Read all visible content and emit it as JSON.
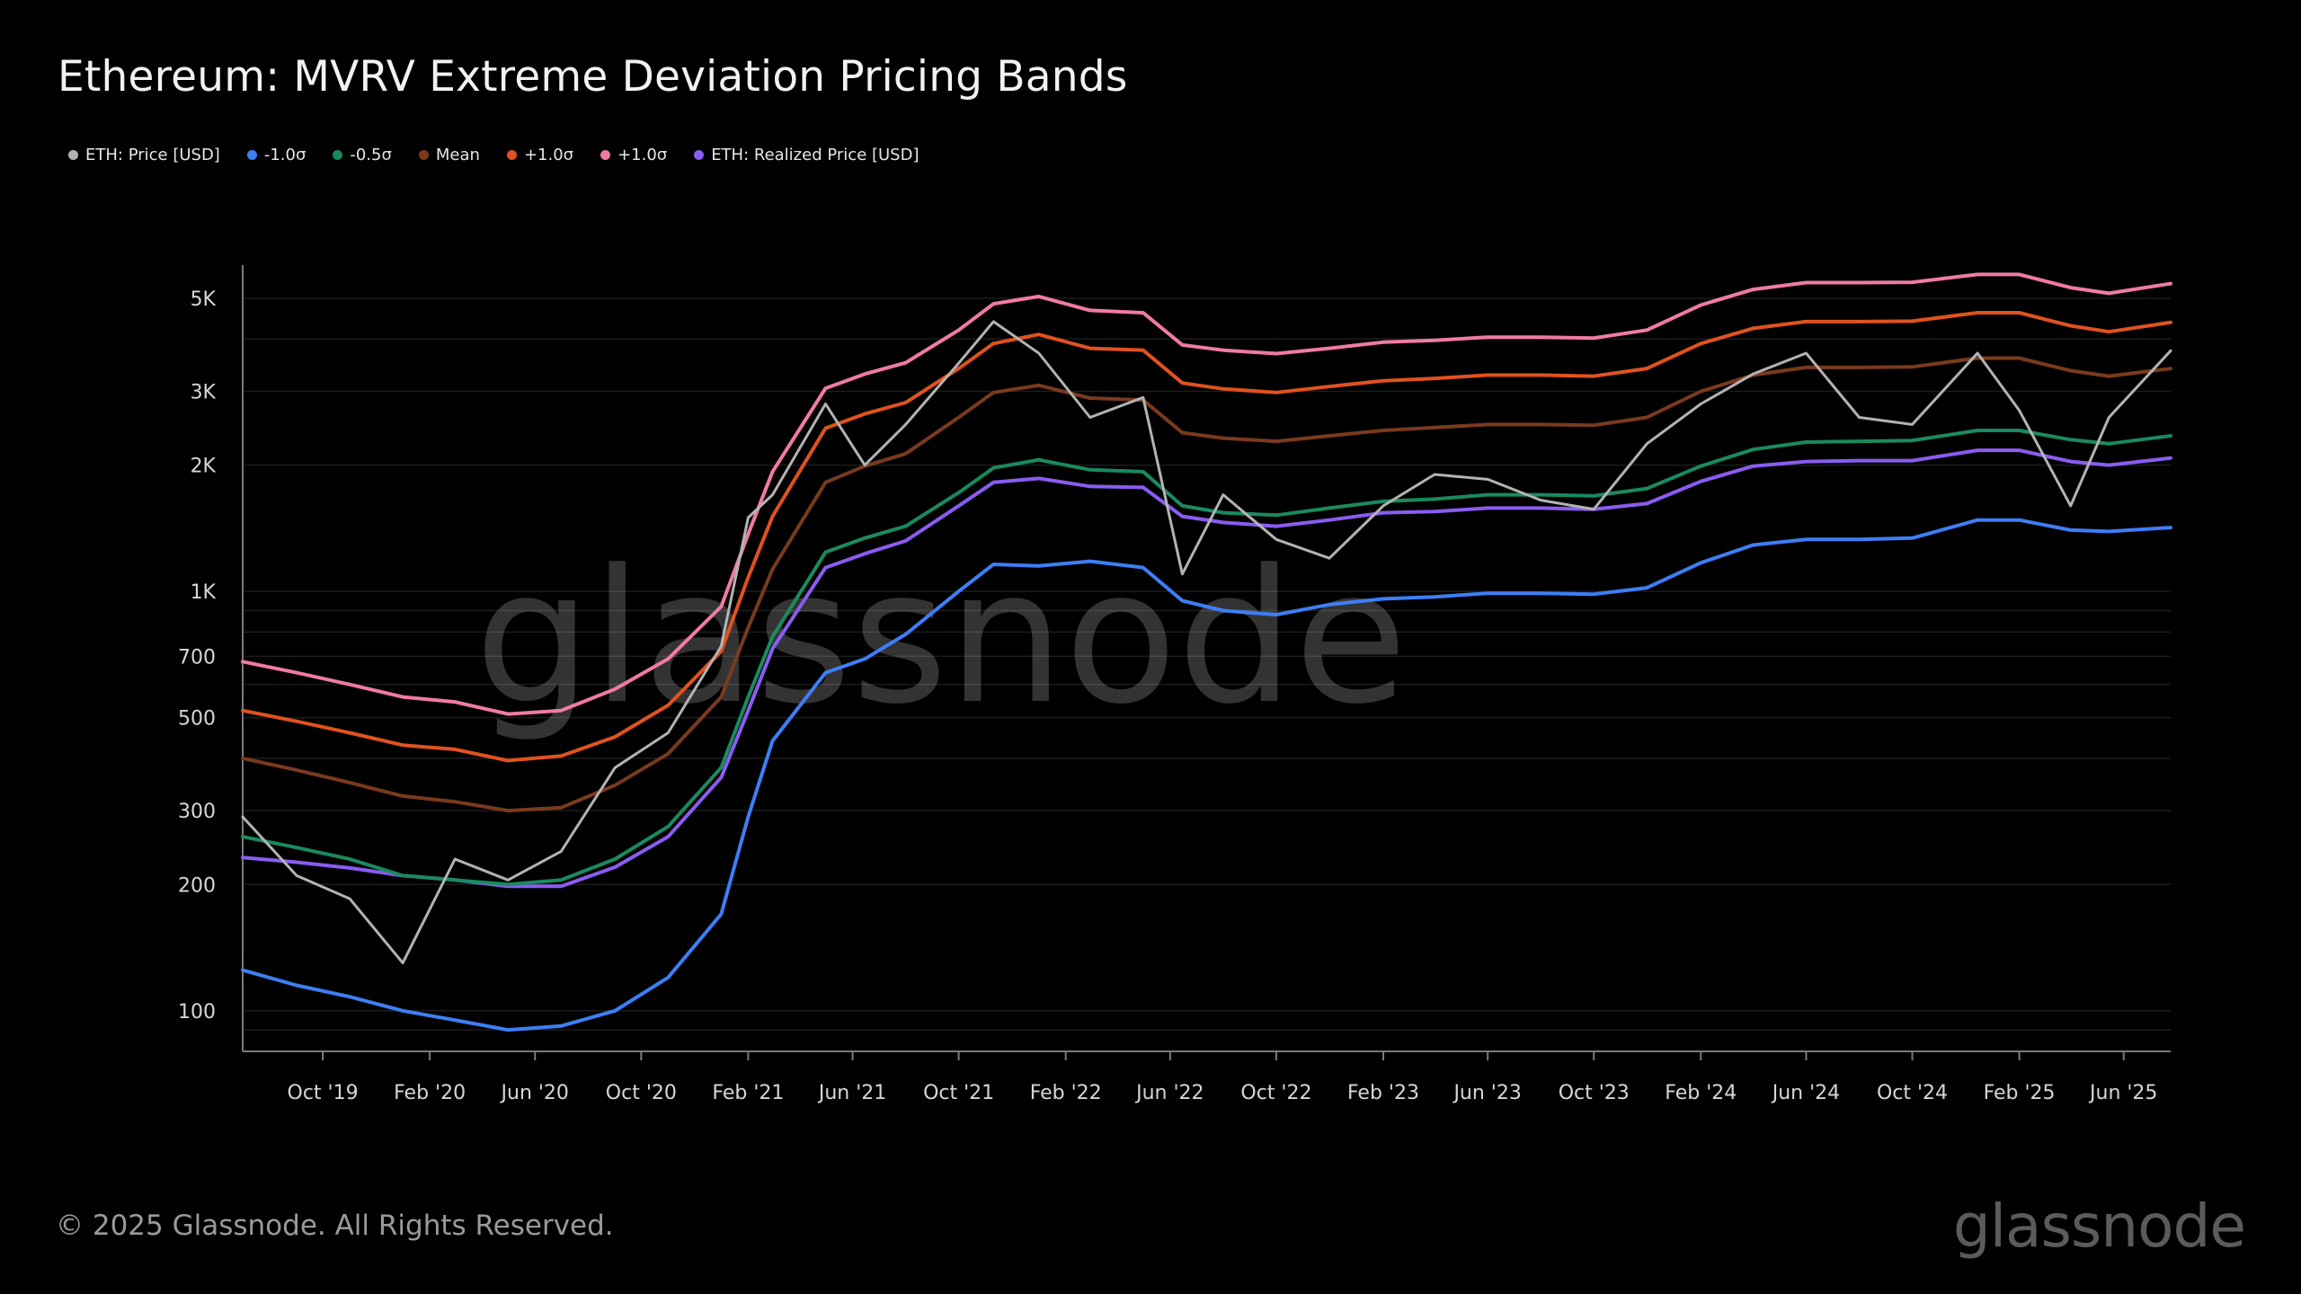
{
  "title": "Ethereum: MVRV Extreme Deviation Pricing Bands",
  "footer": "© 2025 Glassnode. All Rights Reserved.",
  "logo_text": "glassnode",
  "watermark_text": "glassnode",
  "legend": [
    {
      "label": "ETH: Price [USD]",
      "color": "#b3b3b3"
    },
    {
      "label": "-1.0σ",
      "color": "#3d7ef5"
    },
    {
      "label": "-0.5σ",
      "color": "#1a8a5e"
    },
    {
      "label": "Mean",
      "color": "#7a3a1e"
    },
    {
      "label": "+1.0σ",
      "color": "#e0521f"
    },
    {
      "label": "+1.0σ",
      "color": "#f07aa6"
    },
    {
      "label": "ETH: Realized Price [USD]",
      "color": "#8a5cf0"
    }
  ],
  "chart_data": {
    "type": "line",
    "title": "Ethereum: MVRV Extreme Deviation Pricing Bands",
    "y_scale": "log",
    "ylim": [
      80,
      6000
    ],
    "y_ticks": [
      {
        "value": 100,
        "label": "100"
      },
      {
        "value": 200,
        "label": "200"
      },
      {
        "value": 300,
        "label": "300"
      },
      {
        "value": 500,
        "label": "500"
      },
      {
        "value": 700,
        "label": "700"
      },
      {
        "value": 1000,
        "label": "1K"
      },
      {
        "value": 2000,
        "label": "2K"
      },
      {
        "value": 3000,
        "label": "3K"
      },
      {
        "value": 5000,
        "label": "5K"
      }
    ],
    "xlim": [
      "2019-07-01",
      "2025-07-25"
    ],
    "x_ticks": [
      {
        "value": "2019-10-01",
        "label": "Oct '19"
      },
      {
        "value": "2020-02-01",
        "label": "Feb '20"
      },
      {
        "value": "2020-06-01",
        "label": "Jun '20"
      },
      {
        "value": "2020-10-01",
        "label": "Oct '20"
      },
      {
        "value": "2021-02-01",
        "label": "Feb '21"
      },
      {
        "value": "2021-06-01",
        "label": "Jun '21"
      },
      {
        "value": "2021-10-01",
        "label": "Oct '21"
      },
      {
        "value": "2022-02-01",
        "label": "Feb '22"
      },
      {
        "value": "2022-06-01",
        "label": "Jun '22"
      },
      {
        "value": "2022-10-01",
        "label": "Oct '22"
      },
      {
        "value": "2023-02-01",
        "label": "Feb '23"
      },
      {
        "value": "2023-06-01",
        "label": "Jun '23"
      },
      {
        "value": "2023-10-01",
        "label": "Oct '23"
      },
      {
        "value": "2024-02-01",
        "label": "Feb '24"
      },
      {
        "value": "2024-06-01",
        "label": "Jun '24"
      },
      {
        "value": "2024-10-01",
        "label": "Oct '24"
      },
      {
        "value": "2025-02-01",
        "label": "Feb '25"
      },
      {
        "value": "2025-06-01",
        "label": "Jun '25"
      }
    ],
    "grid": true,
    "legend_position": "top-left",
    "x": [
      "2019-07-01",
      "2019-09-01",
      "2019-11-01",
      "2020-01-01",
      "2020-03-01",
      "2020-05-01",
      "2020-07-01",
      "2020-09-01",
      "2020-11-01",
      "2021-01-01",
      "2021-02-01",
      "2021-03-01",
      "2021-05-01",
      "2021-06-15",
      "2021-08-01",
      "2021-10-01",
      "2021-11-10",
      "2022-01-01",
      "2022-03-01",
      "2022-05-01",
      "2022-06-15",
      "2022-08-01",
      "2022-10-01",
      "2022-12-01",
      "2023-02-01",
      "2023-04-01",
      "2023-06-01",
      "2023-08-01",
      "2023-10-01",
      "2023-12-01",
      "2024-02-01",
      "2024-04-01",
      "2024-06-01",
      "2024-08-01",
      "2024-10-01",
      "2024-12-15",
      "2025-02-01",
      "2025-04-01",
      "2025-05-15",
      "2025-07-25"
    ],
    "series": [
      {
        "name": "ETH: Price [USD]",
        "color": "#b3b3b3",
        "values": [
          290,
          210,
          185,
          130,
          230,
          205,
          240,
          380,
          460,
          740,
          1500,
          1700,
          2800,
          2000,
          2500,
          3500,
          4400,
          3700,
          2600,
          2900,
          1100,
          1700,
          1330,
          1200,
          1600,
          1900,
          1850,
          1650,
          1570,
          2250,
          2800,
          3300,
          3700,
          2600,
          2500,
          3700,
          2700,
          1600,
          2600,
          3750
        ]
      },
      {
        "name": "-1.0σ",
        "color": "#3d7ef5",
        "values": [
          125,
          115,
          108,
          100,
          95,
          90,
          92,
          100,
          120,
          170,
          290,
          440,
          640,
          690,
          790,
          1000,
          1160,
          1150,
          1180,
          1140,
          950,
          900,
          880,
          930,
          960,
          970,
          990,
          990,
          985,
          1020,
          1170,
          1290,
          1330,
          1330,
          1340,
          1480,
          1480,
          1400,
          1390,
          1420
        ]
      },
      {
        "name": "-0.5σ",
        "color": "#1a8a5e",
        "values": [
          260,
          245,
          230,
          210,
          205,
          200,
          205,
          230,
          275,
          380,
          560,
          780,
          1240,
          1340,
          1430,
          1720,
          1970,
          2060,
          1950,
          1930,
          1600,
          1540,
          1520,
          1580,
          1640,
          1660,
          1700,
          1700,
          1690,
          1760,
          1990,
          2180,
          2270,
          2280,
          2290,
          2420,
          2420,
          2300,
          2250,
          2350
        ]
      },
      {
        "name": "Mean",
        "color": "#7a3a1e",
        "values": [
          400,
          375,
          350,
          325,
          315,
          300,
          305,
          345,
          410,
          560,
          820,
          1130,
          1820,
          1990,
          2130,
          2600,
          2980,
          3100,
          2890,
          2860,
          2390,
          2320,
          2280,
          2350,
          2420,
          2460,
          2500,
          2500,
          2490,
          2600,
          3000,
          3280,
          3420,
          3420,
          3430,
          3600,
          3600,
          3360,
          3260,
          3400
        ]
      },
      {
        "name": "+1.0σ",
        "color": "#e0521f",
        "values": [
          520,
          490,
          460,
          430,
          420,
          395,
          405,
          450,
          535,
          720,
          1080,
          1510,
          2450,
          2650,
          2820,
          3400,
          3900,
          4100,
          3800,
          3760,
          3140,
          3040,
          2980,
          3080,
          3180,
          3220,
          3280,
          3280,
          3260,
          3400,
          3900,
          4240,
          4400,
          4400,
          4410,
          4620,
          4620,
          4300,
          4160,
          4380
        ]
      },
      {
        "name": "+1.0σ",
        "color": "#f07aa6",
        "values": [
          680,
          640,
          600,
          560,
          545,
          510,
          520,
          585,
          690,
          920,
          1370,
          1930,
          3050,
          3300,
          3510,
          4200,
          4850,
          5050,
          4680,
          4620,
          3870,
          3760,
          3690,
          3800,
          3930,
          3970,
          4040,
          4040,
          4020,
          4200,
          4820,
          5250,
          5450,
          5450,
          5460,
          5700,
          5700,
          5300,
          5140,
          5420
        ]
      },
      {
        "name": "ETH: Realized Price [USD]",
        "color": "#8a5cf0",
        "values": [
          232,
          226,
          219,
          210,
          205,
          198,
          198,
          220,
          260,
          360,
          520,
          730,
          1140,
          1230,
          1320,
          1600,
          1820,
          1860,
          1780,
          1770,
          1510,
          1460,
          1430,
          1480,
          1540,
          1550,
          1580,
          1580,
          1570,
          1620,
          1830,
          1990,
          2040,
          2050,
          2050,
          2170,
          2170,
          2040,
          2000,
          2080
        ]
      }
    ]
  }
}
